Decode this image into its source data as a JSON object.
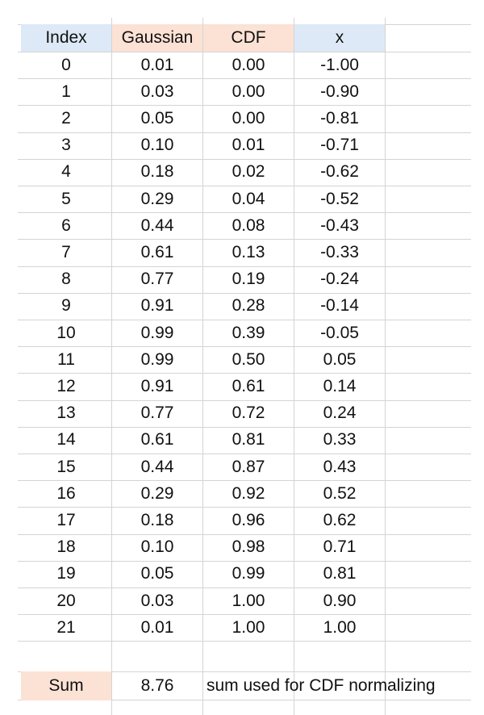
{
  "sheet": {
    "headers": [
      "Index",
      "Gaussian",
      "CDF",
      "x"
    ],
    "header_colors": {
      "blue": "#dde9f6",
      "peach": "#fbe2d5"
    },
    "rows": [
      [
        "0",
        "0.01",
        "0.00",
        "-1.00"
      ],
      [
        "1",
        "0.03",
        "0.00",
        "-0.90"
      ],
      [
        "2",
        "0.05",
        "0.00",
        "-0.81"
      ],
      [
        "3",
        "0.10",
        "0.01",
        "-0.71"
      ],
      [
        "4",
        "0.18",
        "0.02",
        "-0.62"
      ],
      [
        "5",
        "0.29",
        "0.04",
        "-0.52"
      ],
      [
        "6",
        "0.44",
        "0.08",
        "-0.43"
      ],
      [
        "7",
        "0.61",
        "0.13",
        "-0.33"
      ],
      [
        "8",
        "0.77",
        "0.19",
        "-0.24"
      ],
      [
        "9",
        "0.91",
        "0.28",
        "-0.14"
      ],
      [
        "10",
        "0.99",
        "0.39",
        "-0.05"
      ],
      [
        "11",
        "0.99",
        "0.50",
        "0.05"
      ],
      [
        "12",
        "0.91",
        "0.61",
        "0.14"
      ],
      [
        "13",
        "0.77",
        "0.72",
        "0.24"
      ],
      [
        "14",
        "0.61",
        "0.81",
        "0.33"
      ],
      [
        "15",
        "0.44",
        "0.87",
        "0.43"
      ],
      [
        "16",
        "0.29",
        "0.92",
        "0.52"
      ],
      [
        "17",
        "0.18",
        "0.96",
        "0.62"
      ],
      [
        "18",
        "0.10",
        "0.98",
        "0.71"
      ],
      [
        "19",
        "0.05",
        "0.99",
        "0.81"
      ],
      [
        "20",
        "0.03",
        "1.00",
        "0.90"
      ],
      [
        "21",
        "0.01",
        "1.00",
        "1.00"
      ]
    ],
    "sum": {
      "label": "Sum",
      "value": "8.76",
      "note": "sum used for CDF normalizing"
    }
  }
}
